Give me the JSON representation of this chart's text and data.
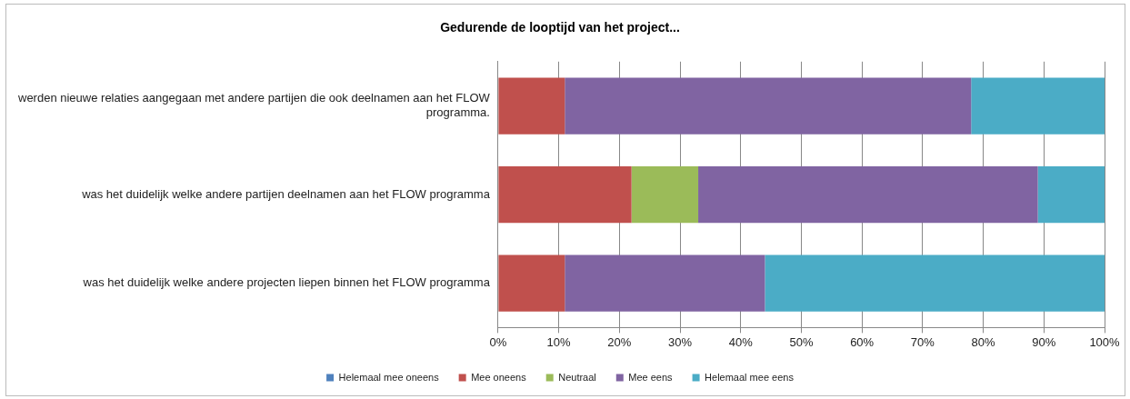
{
  "chart_data": {
    "type": "bar",
    "orientation": "horizontal",
    "stacked": true,
    "title": "Gedurende de looptijd van het project...",
    "categories": [
      "werden nieuwe relaties aangegaan met andere partijen die ook deelnamen aan het FLOW programma.",
      "was het duidelijk welke andere partijen deelnamen aan het FLOW programma",
      "was het duidelijk welke andere projecten liepen binnen het FLOW programma"
    ],
    "series": [
      {
        "name": "Helemaal mee oneens",
        "color": "#4f81bd",
        "values": [
          0,
          0,
          0
        ]
      },
      {
        "name": "Mee oneens",
        "color": "#c0504d",
        "values": [
          11,
          22,
          11
        ]
      },
      {
        "name": "Neutraal",
        "color": "#9bbb59",
        "values": [
          0,
          11,
          0
        ]
      },
      {
        "name": "Mee eens",
        "color": "#8064a2",
        "values": [
          67,
          56,
          33
        ]
      },
      {
        "name": "Helemaal mee eens",
        "color": "#4bacc6",
        "values": [
          22,
          11,
          56
        ]
      }
    ],
    "xlim": [
      0,
      100
    ],
    "xticks": [
      {
        "value": 0,
        "label": "0%"
      },
      {
        "value": 10,
        "label": "10%"
      },
      {
        "value": 20,
        "label": "20%"
      },
      {
        "value": 30,
        "label": "30%"
      },
      {
        "value": 40,
        "label": "40%"
      },
      {
        "value": 50,
        "label": "50%"
      },
      {
        "value": 60,
        "label": "60%"
      },
      {
        "value": 70,
        "label": "70%"
      },
      {
        "value": 80,
        "label": "80%"
      },
      {
        "value": 90,
        "label": "90%"
      },
      {
        "value": 100,
        "label": "100%"
      }
    ],
    "grid": "x",
    "legend": "bottom"
  }
}
